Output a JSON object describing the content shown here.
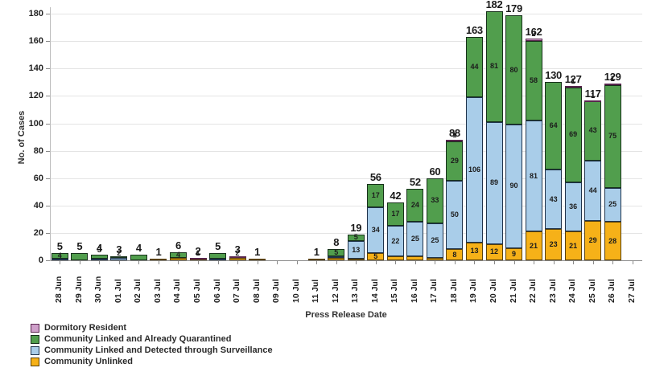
{
  "chart_data": {
    "type": "bar",
    "stacked": true,
    "ylabel": "No. of Cases",
    "xlabel": "Press Release Date",
    "ylim": [
      0,
      190
    ],
    "yticks": [
      0,
      20,
      40,
      60,
      80,
      100,
      120,
      140,
      160,
      180
    ],
    "grid": "horizontal",
    "legend_position": "bottom-left",
    "categories": [
      "28 Jun",
      "29 Jun",
      "30 Jun",
      "01 Jul",
      "02 Jul",
      "03 Jul",
      "04 Jul",
      "05 Jul",
      "06 Jul",
      "07 Jul",
      "08 Jul",
      "09 Jul",
      "10 Jul",
      "11 Jul",
      "12 Jul",
      "13 Jul",
      "14 Jul",
      "15 Jul",
      "16 Jul",
      "17 Jul",
      "18 Jul",
      "19 Jul",
      "20 Jul",
      "21 Jul",
      "22 Jul",
      "23 Jul",
      "24 Jul",
      "25 Jul",
      "26 Jul",
      "27 Jul"
    ],
    "totals": [
      5,
      5,
      4,
      3,
      4,
      1,
      6,
      2,
      5,
      3,
      1,
      0,
      0,
      1,
      8,
      19,
      56,
      42,
      52,
      60,
      88,
      163,
      182,
      179,
      162,
      130,
      127,
      117,
      129,
      0
    ],
    "series": [
      {
        "name": "Community Unlinked",
        "key": "unlinked",
        "color": "#f6b118",
        "border": "#59410a",
        "values": [
          0,
          0,
          0,
          0,
          0,
          1,
          2,
          1,
          0,
          2,
          1,
          0,
          0,
          1,
          2,
          1,
          5,
          3,
          3,
          2,
          8,
          13,
          12,
          9,
          21,
          23,
          21,
          29,
          28,
          0
        ],
        "labels_shown": [
          false,
          false,
          false,
          false,
          false,
          false,
          false,
          false,
          false,
          true,
          false,
          false,
          false,
          false,
          false,
          true,
          true,
          true,
          true,
          true,
          true,
          true,
          true,
          true,
          true,
          true,
          true,
          true,
          true,
          false
        ]
      },
      {
        "name": "Community Linked and Detected through Surveillance",
        "key": "surveillance",
        "color": "#a9cde9",
        "border": "#20344c",
        "values": [
          1,
          0,
          1,
          2,
          0,
          0,
          0,
          0,
          1,
          0,
          0,
          0,
          0,
          0,
          1,
          13,
          34,
          22,
          25,
          25,
          50,
          106,
          89,
          90,
          81,
          43,
          36,
          44,
          25,
          0
        ],
        "labels_shown": [
          false,
          false,
          false,
          true,
          false,
          false,
          false,
          false,
          false,
          false,
          false,
          false,
          false,
          false,
          false,
          true,
          true,
          true,
          true,
          true,
          true,
          true,
          true,
          true,
          true,
          true,
          true,
          true,
          true,
          false
        ]
      },
      {
        "name": "Community Linked and Already Quarantined",
        "key": "quarantined",
        "color": "#519e4d",
        "border": "#16301a",
        "values": [
          4,
          5,
          3,
          1,
          4,
          0,
          4,
          0,
          4,
          0,
          0,
          0,
          0,
          0,
          5,
          5,
          17,
          17,
          24,
          33,
          29,
          44,
          81,
          80,
          58,
          64,
          69,
          43,
          75,
          0
        ],
        "labels_shown": [
          true,
          false,
          true,
          false,
          false,
          false,
          true,
          false,
          false,
          false,
          false,
          false,
          false,
          false,
          true,
          true,
          true,
          true,
          true,
          true,
          true,
          true,
          true,
          true,
          true,
          true,
          true,
          true,
          true,
          false
        ]
      },
      {
        "name": "Dormitory Resident",
        "key": "dormitory",
        "color": "#cfa0ca",
        "border": "#59264e",
        "values": [
          0,
          0,
          0,
          0,
          0,
          0,
          0,
          1,
          0,
          1,
          0,
          0,
          0,
          0,
          0,
          0,
          0,
          0,
          0,
          0,
          1,
          0,
          0,
          0,
          2,
          0,
          1,
          1,
          1,
          0
        ],
        "labels_shown": [
          false,
          false,
          false,
          false,
          false,
          false,
          false,
          true,
          false,
          false,
          false,
          false,
          false,
          false,
          false,
          false,
          false,
          false,
          false,
          false,
          true,
          false,
          false,
          false,
          true,
          false,
          true,
          true,
          true,
          false
        ]
      }
    ]
  },
  "legend": {
    "items": [
      {
        "label": "Dormitory Resident",
        "color": "#cfa0ca",
        "border": "#59264e"
      },
      {
        "label": "Community Linked and Already Quarantined",
        "color": "#519e4d",
        "border": "#16301a"
      },
      {
        "label": "Community Linked and Detected through Surveillance",
        "color": "#a9cde9",
        "border": "#20344c"
      },
      {
        "label": "Community Unlinked",
        "color": "#f6b118",
        "border": "#59410a"
      }
    ]
  },
  "axes": {
    "y_title": "No. of Cases",
    "x_title": "Press Release Date"
  }
}
